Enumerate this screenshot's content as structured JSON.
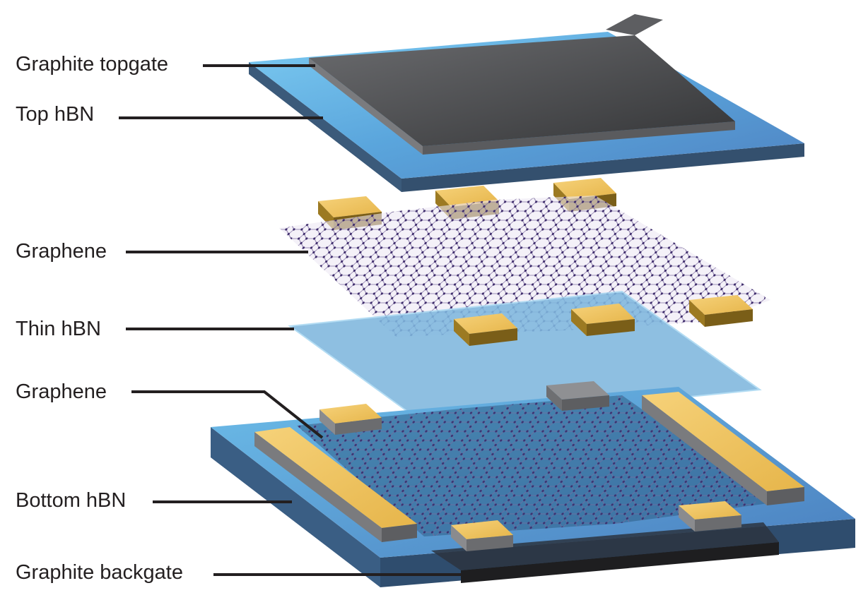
{
  "labels": {
    "graphite_topgate": "Graphite topgate",
    "top_hbn": "Top hBN",
    "graphene_top": "Graphene",
    "thin_hbn": "Thin hBN",
    "graphene_bottom": "Graphene",
    "bottom_hbn": "Bottom hBN",
    "graphite_backgate": "Graphite backgate"
  },
  "colors": {
    "hbn_blue": "#5ba6dc",
    "hbn_side": "#3a5a78",
    "graphite_dark": "#3d3e40",
    "gold_contact": "#f0c55a",
    "gold_side": "#8a6a1e",
    "lattice_atom": "#3d2b6b",
    "label_text": "#231f20"
  }
}
